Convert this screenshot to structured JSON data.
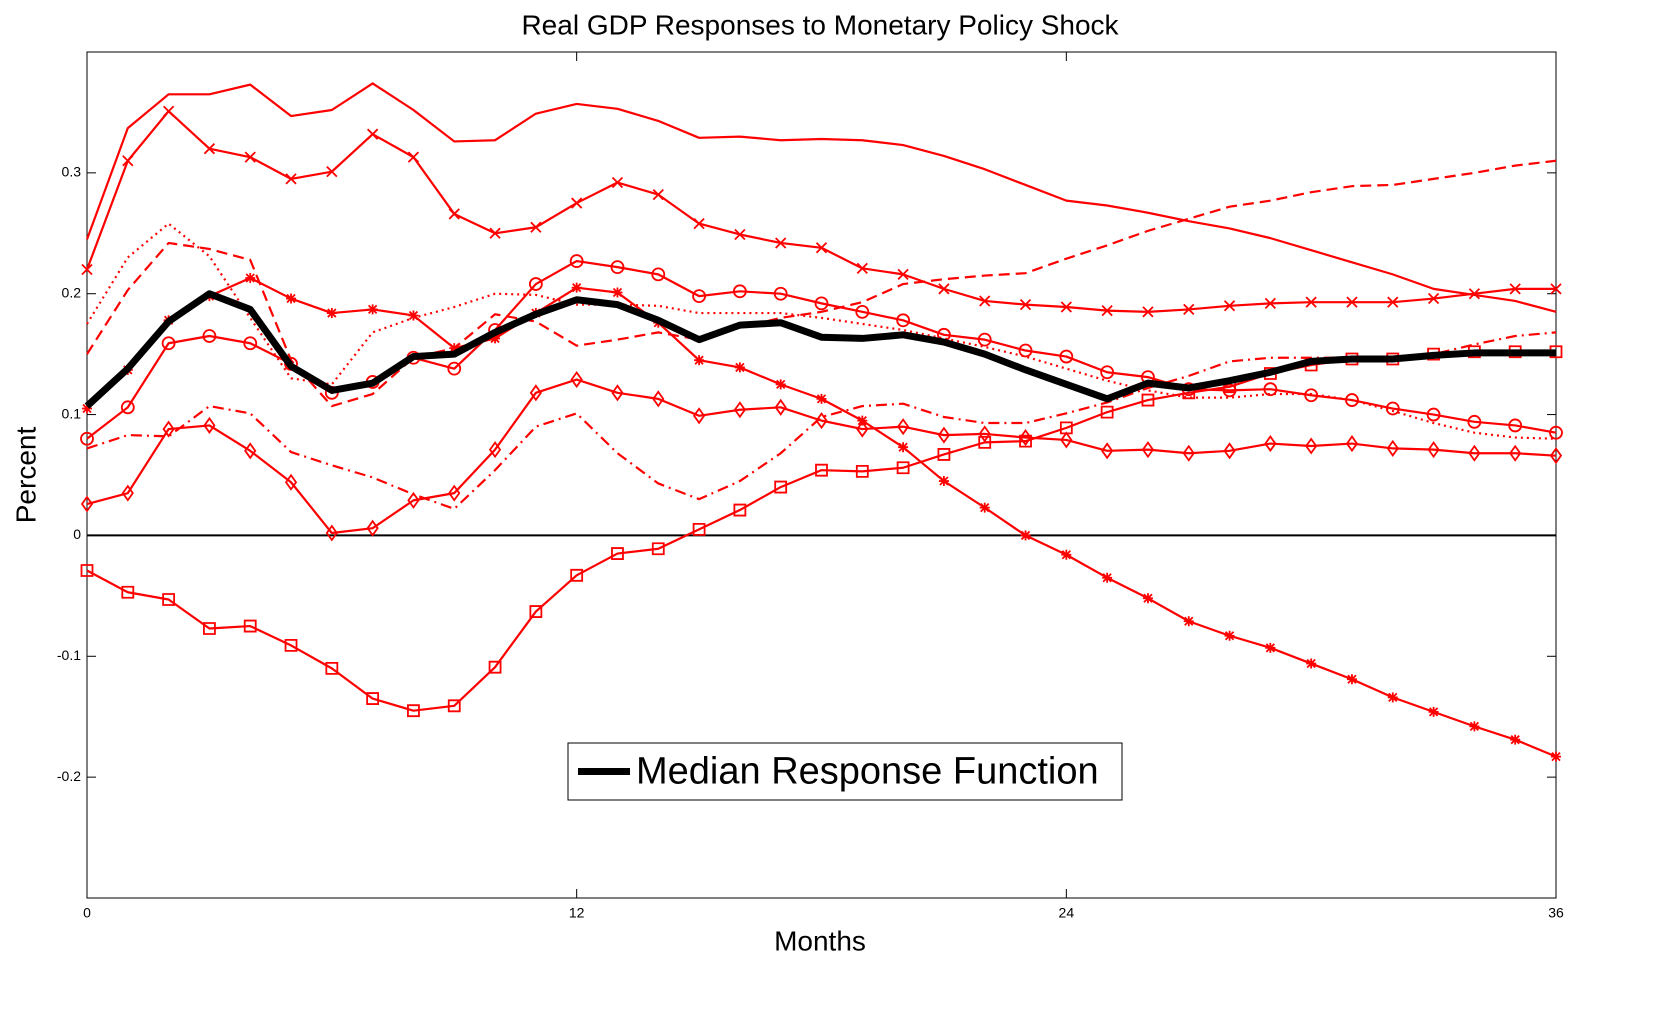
{
  "chart_data": {
    "type": "line",
    "title": "Real GDP Responses to Monetary Policy Shock",
    "x_label": "Months",
    "y_label": "Percent",
    "xlim": [
      0,
      36
    ],
    "xticks": [
      0,
      12,
      24,
      36
    ],
    "ylim": [
      -0.3,
      0.4
    ],
    "yticks": [
      -0.2,
      -0.1,
      0,
      0.1,
      0.2,
      0.3
    ],
    "zero_line": true,
    "grid": false,
    "x": [
      0,
      1,
      2,
      3,
      4,
      5,
      6,
      7,
      8,
      9,
      10,
      11,
      12,
      13,
      14,
      15,
      16,
      17,
      18,
      19,
      20,
      21,
      22,
      23,
      24,
      25,
      26,
      27,
      28,
      29,
      30,
      31,
      32,
      33,
      34,
      35,
      36
    ],
    "series": [
      {
        "color": "#ff0000",
        "line_style": "solid",
        "marker": "none",
        "values": [
          0.245,
          0.337,
          0.365,
          0.365,
          0.373,
          0.347,
          0.352,
          0.374,
          0.352,
          0.326,
          0.327,
          0.349,
          0.357,
          0.353,
          0.343,
          0.329,
          0.33,
          0.327,
          0.328,
          0.327,
          0.323,
          0.314,
          0.303,
          0.29,
          0.277,
          0.273,
          0.267,
          0.26,
          0.254,
          0.246,
          0.236,
          0.226,
          0.216,
          0.204,
          0.199,
          0.194,
          0.185
        ]
      },
      {
        "color": "#ff0000",
        "line_style": "solid",
        "marker": "x",
        "values": [
          0.22,
          0.31,
          0.351,
          0.32,
          0.313,
          0.295,
          0.301,
          0.332,
          0.313,
          0.266,
          0.25,
          0.255,
          0.275,
          0.292,
          0.282,
          0.258,
          0.249,
          0.242,
          0.238,
          0.221,
          0.216,
          0.204,
          0.194,
          0.191,
          0.189,
          0.186,
          0.185,
          0.187,
          0.19,
          0.192,
          0.193,
          0.193,
          0.193,
          0.196,
          0.2,
          0.204,
          0.204
        ]
      },
      {
        "color": "#ff0000",
        "line_style": "solid",
        "marker": "star",
        "values": [
          0.105,
          0.137,
          0.178,
          0.198,
          0.213,
          0.196,
          0.184,
          0.187,
          0.182,
          0.155,
          0.163,
          0.184,
          0.205,
          0.201,
          0.176,
          0.145,
          0.139,
          0.125,
          0.113,
          0.095,
          0.073,
          0.045,
          0.023,
          0.0,
          -0.016,
          -0.035,
          -0.052,
          -0.071,
          -0.083,
          -0.093,
          -0.106,
          -0.119,
          -0.134,
          -0.146,
          -0.158,
          -0.169,
          -0.183
        ]
      },
      {
        "color": "#ff0000",
        "line_style": "solid",
        "marker": "circle",
        "values": [
          0.08,
          0.106,
          0.159,
          0.165,
          0.159,
          0.142,
          0.118,
          0.127,
          0.147,
          0.138,
          0.17,
          0.208,
          0.227,
          0.222,
          0.216,
          0.198,
          0.202,
          0.2,
          0.192,
          0.185,
          0.178,
          0.166,
          0.162,
          0.153,
          0.148,
          0.135,
          0.131,
          0.121,
          0.12,
          0.121,
          0.116,
          0.112,
          0.105,
          0.1,
          0.094,
          0.091,
          0.085
        ]
      },
      {
        "color": "#ff0000",
        "line_style": "solid",
        "marker": "diamond",
        "values": [
          0.026,
          0.035,
          0.088,
          0.091,
          0.07,
          0.044,
          0.002,
          0.006,
          0.029,
          0.035,
          0.071,
          0.118,
          0.129,
          0.118,
          0.113,
          0.099,
          0.104,
          0.106,
          0.095,
          0.088,
          0.09,
          0.083,
          0.084,
          0.081,
          0.079,
          0.07,
          0.071,
          0.068,
          0.07,
          0.076,
          0.074,
          0.076,
          0.072,
          0.071,
          0.068,
          0.068,
          0.066
        ]
      },
      {
        "color": "#ff0000",
        "line_style": "solid",
        "marker": "square",
        "values": [
          -0.029,
          -0.047,
          -0.053,
          -0.077,
          -0.075,
          -0.091,
          -0.11,
          -0.135,
          -0.145,
          -0.141,
          -0.109,
          -0.063,
          -0.033,
          -0.015,
          -0.011,
          0.005,
          0.021,
          0.04,
          0.054,
          0.053,
          0.056,
          0.067,
          0.077,
          0.078,
          0.089,
          0.102,
          0.112,
          0.118,
          0.123,
          0.134,
          0.141,
          0.146,
          0.146,
          0.15,
          0.152,
          0.152,
          0.152
        ]
      },
      {
        "color": "#ff0000",
        "line_style": "dashed",
        "marker": "none",
        "values": [
          0.15,
          0.203,
          0.242,
          0.237,
          0.228,
          0.145,
          0.107,
          0.117,
          0.147,
          0.155,
          0.183,
          0.177,
          0.157,
          0.162,
          0.168,
          0.162,
          0.172,
          0.18,
          0.185,
          0.193,
          0.208,
          0.212,
          0.215,
          0.217,
          0.229,
          0.24,
          0.252,
          0.262,
          0.272,
          0.277,
          0.284,
          0.289,
          0.29,
          0.295,
          0.3,
          0.306,
          0.31
        ]
      },
      {
        "color": "#ff0000",
        "line_style": "dotted",
        "marker": "none",
        "values": [
          0.175,
          0.23,
          0.258,
          0.231,
          0.18,
          0.13,
          0.125,
          0.168,
          0.18,
          0.189,
          0.2,
          0.199,
          0.191,
          0.191,
          0.19,
          0.184,
          0.184,
          0.184,
          0.18,
          0.175,
          0.17,
          0.163,
          0.156,
          0.148,
          0.138,
          0.128,
          0.12,
          0.114,
          0.114,
          0.117,
          0.117,
          0.112,
          0.103,
          0.093,
          0.085,
          0.081,
          0.08
        ]
      },
      {
        "color": "#ff0000",
        "line_style": "dashdot",
        "marker": "none",
        "values": [
          0.072,
          0.083,
          0.082,
          0.107,
          0.101,
          0.069,
          0.058,
          0.048,
          0.034,
          0.022,
          0.054,
          0.09,
          0.101,
          0.068,
          0.043,
          0.03,
          0.045,
          0.068,
          0.098,
          0.107,
          0.109,
          0.098,
          0.093,
          0.093,
          0.101,
          0.11,
          0.122,
          0.132,
          0.144,
          0.147,
          0.147,
          0.147,
          0.148,
          0.15,
          0.158,
          0.165,
          0.168
        ]
      },
      {
        "name": "Median Response Function",
        "color": "#000000",
        "line_style": "solid",
        "line_width": "thick",
        "marker": "none",
        "values": [
          0.107,
          0.138,
          0.177,
          0.2,
          0.187,
          0.14,
          0.12,
          0.126,
          0.148,
          0.15,
          0.168,
          0.183,
          0.195,
          0.191,
          0.178,
          0.162,
          0.174,
          0.176,
          0.164,
          0.163,
          0.166,
          0.16,
          0.15,
          0.137,
          0.125,
          0.113,
          0.126,
          0.122,
          0.128,
          0.135,
          0.144,
          0.146,
          0.146,
          0.149,
          0.151,
          0.151,
          0.151
        ]
      }
    ]
  }
}
